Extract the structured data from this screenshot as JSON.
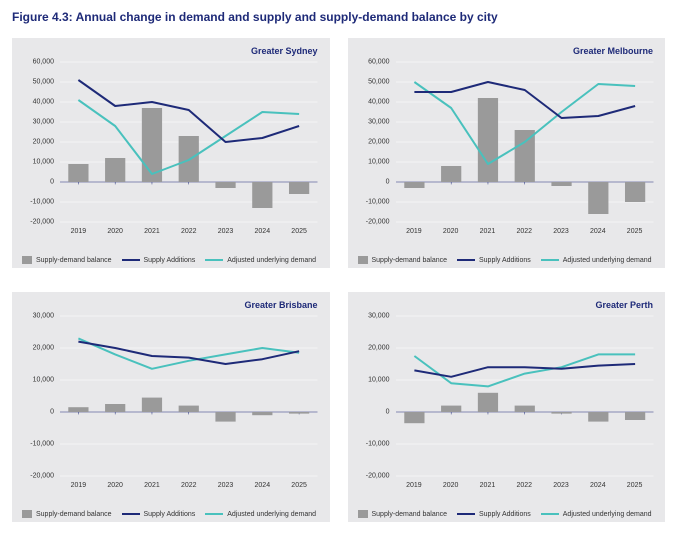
{
  "title": {
    "text": "Figure 4.3: Annual change in demand and supply and supply-demand balance by city",
    "color": "#1e2a78",
    "fontsize": 12,
    "fontweight": 700
  },
  "colors": {
    "panel_bg": "#e8e8ea",
    "grid": "#ffffff",
    "axis": "#1e2a78",
    "text": "#333333",
    "bar": "#9a9a9a",
    "line_supply": "#1e2a78",
    "line_demand": "#49c1bd"
  },
  "legend": {
    "bar_label": "Supply-demand balance",
    "supply_label": "Supply Additions",
    "demand_label": "Adjusted underlying demand"
  },
  "panels": [
    {
      "title": "Greater Sydney",
      "categories": [
        "2019",
        "2020",
        "2021",
        "2022",
        "2023",
        "2024",
        "2025"
      ],
      "ylim": [
        -20000,
        60000
      ],
      "ytick_step": 10000,
      "bar_values": [
        9000,
        12000,
        37000,
        23000,
        -3000,
        -13000,
        -6000
      ],
      "supply_values": [
        51000,
        38000,
        40000,
        36000,
        20000,
        22000,
        28000
      ],
      "demand_values": [
        41000,
        28000,
        4000,
        11000,
        23000,
        35000,
        34000
      ],
      "bar_color": "#9a9a9a",
      "supply_color": "#1e2a78",
      "demand_color": "#49c1bd",
      "bar_width": 0.55,
      "line_width": 2,
      "grid_color": "#ffffff",
      "background_color": "#e8e8ea",
      "label_fontsize": 7,
      "title_fontsize": 9
    },
    {
      "title": "Greater Melbourne",
      "categories": [
        "2019",
        "2020",
        "2021",
        "2022",
        "2023",
        "2024",
        "2025"
      ],
      "ylim": [
        -20000,
        60000
      ],
      "ytick_step": 10000,
      "bar_values": [
        -3000,
        8000,
        42000,
        26000,
        -2000,
        -16000,
        -10000
      ],
      "supply_values": [
        45000,
        45000,
        50000,
        46000,
        32000,
        33000,
        38000
      ],
      "demand_values": [
        50000,
        37000,
        9000,
        20000,
        35000,
        49000,
        48000
      ],
      "bar_color": "#9a9a9a",
      "supply_color": "#1e2a78",
      "demand_color": "#49c1bd",
      "bar_width": 0.55,
      "line_width": 2,
      "grid_color": "#ffffff",
      "background_color": "#e8e8ea",
      "label_fontsize": 7,
      "title_fontsize": 9
    },
    {
      "title": "Greater Brisbane",
      "categories": [
        "2019",
        "2020",
        "2021",
        "2022",
        "2023",
        "2024",
        "2025"
      ],
      "ylim": [
        -20000,
        30000
      ],
      "ytick_step": 10000,
      "bar_values": [
        1500,
        2500,
        4500,
        2000,
        -3000,
        -1000,
        -500
      ],
      "supply_values": [
        22000,
        20000,
        17500,
        17000,
        15000,
        16500,
        19000
      ],
      "demand_values": [
        23000,
        18000,
        13500,
        16000,
        18000,
        20000,
        18500
      ],
      "bar_color": "#9a9a9a",
      "supply_color": "#1e2a78",
      "demand_color": "#49c1bd",
      "bar_width": 0.55,
      "line_width": 2,
      "grid_color": "#ffffff",
      "background_color": "#e8e8ea",
      "label_fontsize": 7,
      "title_fontsize": 9
    },
    {
      "title": "Greater Perth",
      "categories": [
        "2019",
        "2020",
        "2021",
        "2022",
        "2023",
        "2024",
        "2025"
      ],
      "ylim": [
        -20000,
        30000
      ],
      "ytick_step": 10000,
      "bar_values": [
        -3500,
        2000,
        6000,
        2000,
        -500,
        -3000,
        -2500
      ],
      "supply_values": [
        13000,
        11000,
        14000,
        14000,
        13500,
        14500,
        15000
      ],
      "demand_values": [
        17500,
        9000,
        8000,
        12000,
        14000,
        18000,
        18000
      ],
      "bar_color": "#9a9a9a",
      "supply_color": "#1e2a78",
      "demand_color": "#49c1bd",
      "bar_width": 0.55,
      "line_width": 2,
      "grid_color": "#ffffff",
      "background_color": "#e8e8ea",
      "label_fontsize": 7,
      "title_fontsize": 9
    }
  ]
}
